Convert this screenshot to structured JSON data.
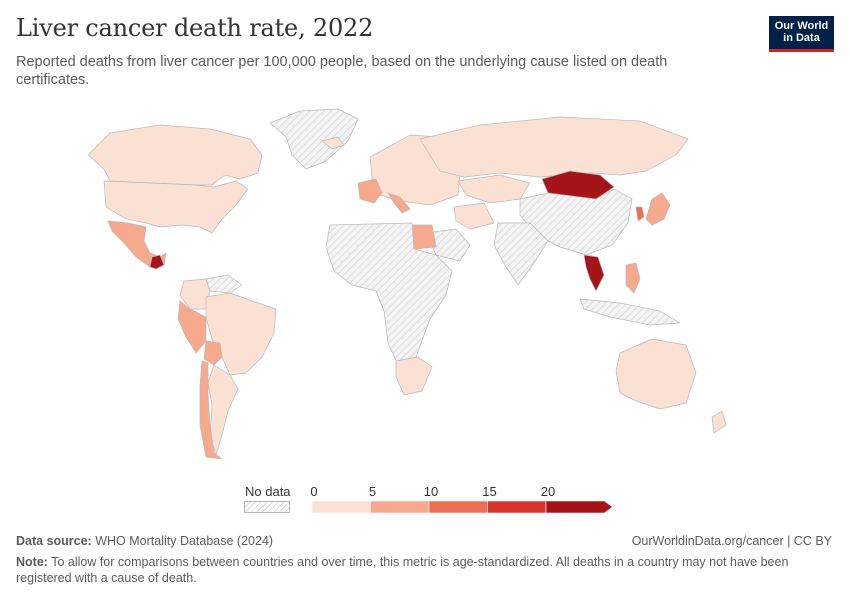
{
  "title": "Liver cancer death rate, 2022",
  "subtitle": "Reported deaths from liver cancer per 100,000 people, based on the underlying cause listed on death certificates.",
  "logo": {
    "line1": "Our World",
    "line2": "in Data"
  },
  "legend": {
    "no_data_label": "No data",
    "ticks": [
      "0",
      "5",
      "10",
      "15",
      "20"
    ],
    "bins": [
      {
        "from": 0,
        "to": 5,
        "color": "#fbe1d4"
      },
      {
        "from": 5,
        "to": 10,
        "color": "#f6a98c"
      },
      {
        "from": 10,
        "to": 15,
        "color": "#ee6d55"
      },
      {
        "from": 15,
        "to": 20,
        "color": "#d8362d"
      },
      {
        "from": 20,
        "to": null,
        "color": "#a51419"
      }
    ]
  },
  "colors": {
    "no_data_fill": "#f2f2f2",
    "no_data_hatch": "#d6d6d6",
    "border": "#b9b9b9"
  },
  "regions": [
    {
      "name": "Greenland",
      "value": null
    },
    {
      "name": "Canada",
      "value": 3
    },
    {
      "name": "United States",
      "value": 4
    },
    {
      "name": "Mexico",
      "value": 6
    },
    {
      "name": "Guatemala",
      "value": 22
    },
    {
      "name": "Venezuela",
      "value": null
    },
    {
      "name": "Colombia",
      "value": 4
    },
    {
      "name": "Brazil",
      "value": 3
    },
    {
      "name": "Peru",
      "value": 5
    },
    {
      "name": "Bolivia",
      "value": 5
    },
    {
      "name": "Argentina",
      "value": 3
    },
    {
      "name": "Chile",
      "value": 7
    },
    {
      "name": "Iceland",
      "value": 2
    },
    {
      "name": "Europe",
      "value": 4
    },
    {
      "name": "Italy",
      "value": 8
    },
    {
      "name": "France",
      "value": 6
    },
    {
      "name": "Russia",
      "value": 3
    },
    {
      "name": "Kazakhstan",
      "value": 3
    },
    {
      "name": "Mongolia",
      "value": 24
    },
    {
      "name": "China",
      "value": null
    },
    {
      "name": "South Korea",
      "value": 12
    },
    {
      "name": "Japan",
      "value": 7
    },
    {
      "name": "Thailand",
      "value": 20
    },
    {
      "name": "Philippines",
      "value": 8
    },
    {
      "name": "India",
      "value": null
    },
    {
      "name": "Iran",
      "value": 3
    },
    {
      "name": "Saudi Arabia",
      "value": null
    },
    {
      "name": "Egypt",
      "value": 9
    },
    {
      "name": "Africa",
      "value": null
    },
    {
      "name": "South Africa",
      "value": 4
    },
    {
      "name": "Australia",
      "value": 3
    },
    {
      "name": "Indonesia",
      "value": null
    },
    {
      "name": "New Zealand",
      "value": 3
    }
  ],
  "footer": {
    "source_label": "Data source:",
    "source_text": "WHO Mortality Database (2024)",
    "url": "OurWorldinData.org/cancer | CC BY",
    "note_label": "Note:",
    "note_text": "To allow for comparisons between countries and over time, this metric is age-standardized. All deaths in a country may not have been registered with a cause of death."
  }
}
